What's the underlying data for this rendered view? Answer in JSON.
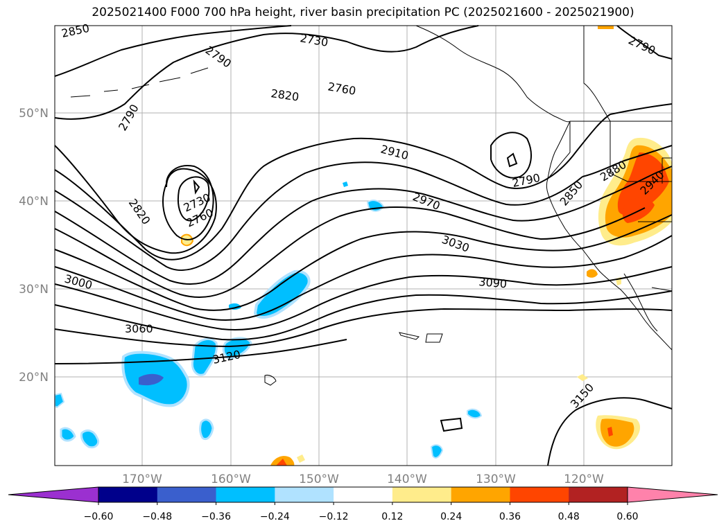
{
  "title": "2025021400 F000 700 hPa height, river basin precipitation PC (2025021600 - 2025021900)",
  "lat_labels": [
    "50°N",
    "40°N",
    "30°N",
    "20°N"
  ],
  "lon_labels": [
    "170°W",
    "160°W",
    "150°W",
    "140°W",
    "130°W",
    "120°W"
  ],
  "contour_labels": [
    "2850",
    "2790",
    "2730",
    "2760",
    "2820",
    "2790",
    "2910",
    "2970",
    "3030",
    "3090",
    "3000",
    "3060",
    "3120",
    "2790",
    "2850",
    "2880",
    "2940",
    "3150",
    "2820",
    "2730",
    "2760",
    "2790"
  ],
  "colorbar": {
    "ticks": [
      "−0.60",
      "−0.48",
      "−0.36",
      "−0.24",
      "−0.12",
      "0.12",
      "0.24",
      "0.36",
      "0.48",
      "0.60"
    ],
    "colors": [
      "#9b30d0",
      "#00008b",
      "#3a5fcd",
      "#00bfff",
      "#b0e2ff",
      "#ffffff",
      "#ffec8b",
      "#ffa500",
      "#ff4500",
      "#b22222",
      "#ff82ab"
    ]
  }
}
